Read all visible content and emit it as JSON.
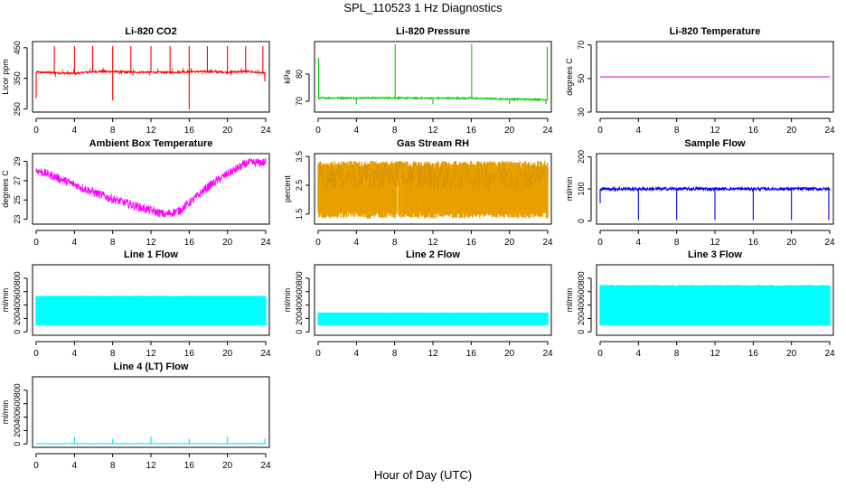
{
  "page": {
    "title": "SPL_110523  1 Hz Diagnostics",
    "xlabel": "Hour of Day (UTC)"
  },
  "chart_data": [
    {
      "id": "co2",
      "type": "line",
      "title": "Li-820 CO2",
      "ylabel": "Licor ppm",
      "xlim": [
        0,
        24
      ],
      "ylim": [
        240,
        470
      ],
      "xticks": [
        0,
        4,
        8,
        12,
        16,
        20,
        24
      ],
      "yticks": [
        250,
        350,
        450
      ],
      "color": "#ff0000",
      "series": [
        {
          "baseline": [
            [
              0,
              370
            ],
            [
              2,
              368
            ],
            [
              4,
              366
            ],
            [
              6,
              372
            ],
            [
              8,
              372
            ],
            [
              10,
              370
            ],
            [
              12,
              370
            ],
            [
              14,
              369
            ],
            [
              16,
              372
            ],
            [
              18,
              372
            ],
            [
              20,
              370
            ],
            [
              22,
              373
            ],
            [
              24,
              366
            ]
          ],
          "noise": 3,
          "spikes": [
            {
              "x": 0.0,
              "y": 285
            },
            {
              "x": 1.9,
              "y": 455
            },
            {
              "x": 4.0,
              "y": 455
            },
            {
              "x": 5.9,
              "y": 455
            },
            {
              "x": 8.0,
              "y": 278
            },
            {
              "x": 8.0,
              "y": 455
            },
            {
              "x": 9.9,
              "y": 455
            },
            {
              "x": 12.0,
              "y": 455
            },
            {
              "x": 14.0,
              "y": 455
            },
            {
              "x": 16.0,
              "y": 248
            },
            {
              "x": 16.0,
              "y": 455
            },
            {
              "x": 17.9,
              "y": 455
            },
            {
              "x": 20.0,
              "y": 455
            },
            {
              "x": 21.9,
              "y": 455
            },
            {
              "x": 23.7,
              "y": 455
            },
            {
              "x": 23.9,
              "y": 340
            }
          ]
        }
      ]
    },
    {
      "id": "pressure",
      "type": "line",
      "title": "Li-820 Pressure",
      "ylabel": "kPa",
      "xlim": [
        0,
        24
      ],
      "ylim": [
        66,
        92
      ],
      "xticks": [
        0,
        4,
        8,
        12,
        16,
        20,
        24
      ],
      "yticks": [
        70,
        80
      ],
      "color": "#00cc00",
      "series": [
        {
          "baseline": [
            [
              0,
              71.2
            ],
            [
              8,
              71.2
            ],
            [
              12,
              71.1
            ],
            [
              16,
              71.1
            ],
            [
              20,
              70.8
            ],
            [
              24,
              70.6
            ]
          ],
          "noise": 0.3,
          "spikes": [
            {
              "x": 0.05,
              "y": 86
            },
            {
              "x": 4.0,
              "y": 69
            },
            {
              "x": 8.05,
              "y": 91
            },
            {
              "x": 12.0,
              "y": 69
            },
            {
              "x": 16.05,
              "y": 91
            },
            {
              "x": 20.0,
              "y": 69
            },
            {
              "x": 23.8,
              "y": 69
            },
            {
              "x": 23.95,
              "y": 90
            }
          ]
        }
      ]
    },
    {
      "id": "licor-temp",
      "type": "line",
      "title": "Li-820 Temperature",
      "ylabel": "degrees C",
      "xlim": [
        0,
        24
      ],
      "ylim": [
        30,
        72
      ],
      "xticks": [
        0,
        4,
        8,
        12,
        16,
        20,
        24
      ],
      "yticks": [
        30,
        50,
        70
      ],
      "color": "#cc00cc",
      "series": [
        {
          "baseline": [
            [
              0,
              51
            ],
            [
              24,
              51
            ]
          ],
          "noise": 0
        }
      ]
    },
    {
      "id": "box-temp",
      "type": "line",
      "title": "Ambient Box Temperature",
      "ylabel": "degrees C",
      "xlim": [
        0,
        24
      ],
      "ylim": [
        22.5,
        29.8
      ],
      "xticks": [
        0,
        4,
        8,
        12,
        16,
        20,
        24
      ],
      "yticks": [
        23,
        25,
        27,
        29
      ],
      "color": "#ff00ff",
      "series": [
        {
          "baseline": [
            [
              0,
              28.1
            ],
            [
              2,
              27.4
            ],
            [
              4,
              26.6
            ],
            [
              6,
              25.8
            ],
            [
              8,
              25.1
            ],
            [
              10,
              24.5
            ],
            [
              12,
              23.9
            ],
            [
              13.5,
              23.5
            ],
            [
              15,
              23.9
            ],
            [
              16.5,
              25.1
            ],
            [
              18,
              26.4
            ],
            [
              20,
              27.7
            ],
            [
              22,
              28.8
            ],
            [
              24,
              28.9
            ]
          ],
          "noise": 0.45
        }
      ]
    },
    {
      "id": "rh",
      "type": "area",
      "title": "Gas Stream RH",
      "ylabel": "percent",
      "xlim": [
        0,
        24
      ],
      "ylim": [
        1.15,
        3.6
      ],
      "xticks": [
        0,
        4,
        8,
        12,
        16,
        20,
        24
      ],
      "yticks": [
        1.5,
        2.5,
        3.5
      ],
      "color": "#e8a000",
      "band": {
        "low": 1.35,
        "high": 3.35
      }
    },
    {
      "id": "sample-flow",
      "type": "line",
      "title": "Sample Flow",
      "ylabel": "ml/min",
      "xlim": [
        0,
        24
      ],
      "ylim": [
        -10,
        210
      ],
      "xticks": [
        0,
        4,
        8,
        12,
        16,
        20,
        24
      ],
      "yticks": [
        0,
        100,
        200
      ],
      "color": "#0000ee",
      "series": [
        {
          "baseline": [
            [
              0,
              100
            ],
            [
              24,
              100
            ]
          ],
          "noise": 5,
          "spikes": [
            {
              "x": 0.0,
              "y": 55
            },
            {
              "x": 4.0,
              "y": 3
            },
            {
              "x": 8.0,
              "y": 3
            },
            {
              "x": 12.0,
              "y": 3
            },
            {
              "x": 16.0,
              "y": 3
            },
            {
              "x": 20.0,
              "y": 3
            },
            {
              "x": 23.9,
              "y": 3
            }
          ]
        }
      ]
    },
    {
      "id": "line1",
      "type": "area",
      "title": "Line 1 Flow",
      "ylabel": "ml/min",
      "xlim": [
        0,
        24
      ],
      "ylim": [
        -50,
        1000
      ],
      "xticks": [
        0,
        4,
        8,
        12,
        16,
        20,
        24
      ],
      "yticks": [
        0,
        200,
        400,
        600,
        800
      ],
      "color": "#00ffff",
      "band": {
        "low": 100,
        "high": 540
      },
      "gaps": [
        4.0,
        8.0,
        12.0,
        16.0,
        19.9
      ]
    },
    {
      "id": "line2",
      "type": "area",
      "title": "Line 2 Flow",
      "ylabel": "ml/min",
      "xlim": [
        0,
        24
      ],
      "ylim": [
        -50,
        1000
      ],
      "xticks": [
        0,
        4,
        8,
        12,
        16,
        20,
        24
      ],
      "yticks": [
        0,
        200,
        400,
        600,
        800
      ],
      "color": "#00ffff",
      "band": {
        "low": 100,
        "high": 290
      },
      "gaps": [
        4.0,
        8.0,
        12.0,
        16.0,
        20.0
      ]
    },
    {
      "id": "line3",
      "type": "area",
      "title": "Line 3 Flow",
      "ylabel": "ml/min",
      "xlim": [
        0,
        24
      ],
      "ylim": [
        -50,
        1000
      ],
      "xticks": [
        0,
        4,
        8,
        12,
        16,
        20,
        24
      ],
      "yticks": [
        0,
        200,
        400,
        600,
        800
      ],
      "color": "#00ffff",
      "band": {
        "low": 100,
        "high": 700
      },
      "gaps": [
        1.0,
        3.0,
        4.0,
        5.0,
        8.0,
        9.0,
        11.5,
        12.0,
        14.0,
        16.0,
        17.0,
        19.0,
        20.0,
        23.5
      ]
    },
    {
      "id": "line4",
      "type": "line",
      "title": "Line 4 (LT) Flow",
      "ylabel": "ml/min",
      "xlim": [
        0,
        24
      ],
      "ylim": [
        -50,
        1000
      ],
      "xticks": [
        0,
        4,
        8,
        12,
        16,
        20,
        24
      ],
      "yticks": [
        0,
        200,
        400,
        600,
        800
      ],
      "color": "#00e5e5",
      "series": [
        {
          "baseline": [
            [
              0,
              5
            ],
            [
              24,
              5
            ]
          ],
          "noise": 2,
          "spikes": [
            {
              "x": 4.0,
              "y": 110
            },
            {
              "x": 8.0,
              "y": 75
            },
            {
              "x": 12.0,
              "y": 110
            },
            {
              "x": 16.0,
              "y": 75
            },
            {
              "x": 20.0,
              "y": 110
            },
            {
              "x": 23.9,
              "y": 80
            }
          ]
        }
      ]
    }
  ]
}
